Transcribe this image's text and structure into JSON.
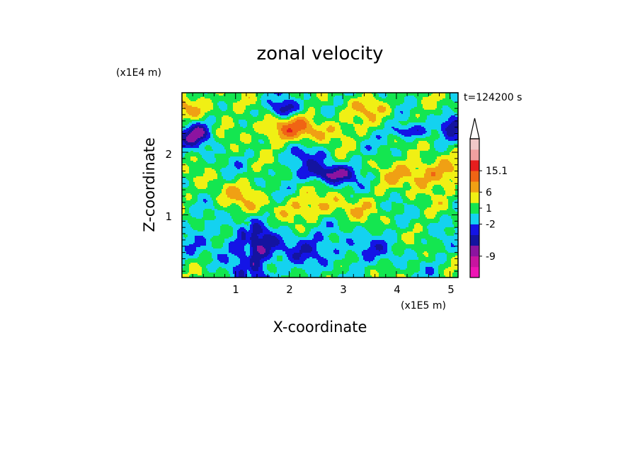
{
  "chart_data": {
    "type": "heatmap",
    "title": "zonal velocity",
    "xlabel": "X-coordinate",
    "ylabel": "Z-coordinate",
    "x_scale_label": "(x1E5 m)",
    "y_scale_label": "(x1E4 m)",
    "time_label": "t=124200 s",
    "xlim": [
      0,
      5.15
    ],
    "ylim": [
      0,
      2.95
    ],
    "x_ticks": [
      1,
      2,
      3,
      4,
      5
    ],
    "y_ticks": [
      1,
      2
    ],
    "colorbar": {
      "tick_labels": [
        {
          "label": "15.1",
          "band": 10
        },
        {
          "label": "6",
          "band": 8
        },
        {
          "label": "1",
          "band": 6.5
        },
        {
          "label": "-2",
          "band": 5
        },
        {
          "label": "-9",
          "band": 2
        }
      ],
      "colors": [
        "#ee14b4",
        "#c814a0",
        "#8c14a0",
        "#1414a0",
        "#1414e6",
        "#14d2f0",
        "#14e650",
        "#f0f014",
        "#f0a014",
        "#f06414",
        "#e61e1e",
        "#f0a0a0",
        "#f0c8c8"
      ],
      "extend": "max"
    }
  }
}
